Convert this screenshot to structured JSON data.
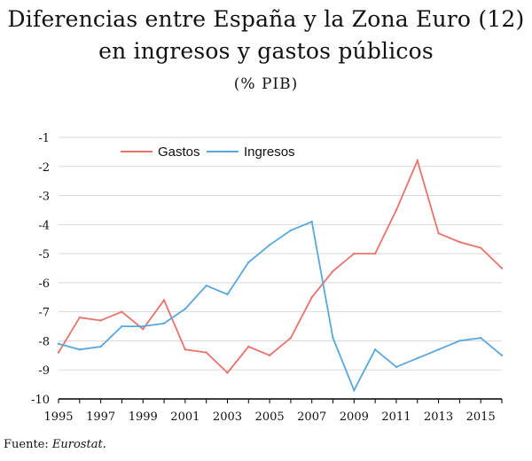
{
  "title_lines": [
    "Diferencias entre España y la Zona Euro (12)",
    "en ingresos y gastos públicos"
  ],
  "subtitle": "(% PIB)",
  "source": {
    "label": "Fuente:",
    "value": "Eurostat."
  },
  "colors": {
    "gastos": "#e8736b",
    "ingresos": "#5aa7dd",
    "grid": "#d9d9d9",
    "axis": "#000000"
  },
  "chart_data": {
    "type": "line",
    "x": [
      1995,
      1996,
      1997,
      1998,
      1999,
      2000,
      2001,
      2002,
      2003,
      2004,
      2005,
      2006,
      2007,
      2008,
      2009,
      2010,
      2011,
      2012,
      2013,
      2014,
      2015,
      2016
    ],
    "x_tick_labels": [
      "1995",
      "1997",
      "1999",
      "2001",
      "2003",
      "2005",
      "2007",
      "2009",
      "2011",
      "2013",
      "2015"
    ],
    "y_tick_labels": [
      "-1",
      "-2",
      "-3",
      "-4",
      "-5",
      "-6",
      "-7",
      "-8",
      "-9",
      "-10"
    ],
    "ylim": [
      -10,
      -1
    ],
    "xlim": [
      1995,
      2016
    ],
    "grid": true,
    "legend_position": "top-center",
    "series": [
      {
        "name": "Gastos",
        "values": [
          -8.4,
          -7.2,
          -7.3,
          -7.0,
          -7.6,
          -6.6,
          -8.3,
          -8.4,
          -9.1,
          -8.2,
          -8.5,
          -7.9,
          -6.5,
          -5.6,
          -5.0,
          -5.0,
          -3.5,
          -1.8,
          -4.3,
          -4.6,
          -4.8,
          -5.5
        ]
      },
      {
        "name": "Ingresos",
        "values": [
          -8.1,
          -8.3,
          -8.2,
          -7.5,
          -7.5,
          -7.4,
          -6.9,
          -6.1,
          -6.4,
          -5.3,
          -4.7,
          -4.2,
          -3.9,
          -7.9,
          -9.7,
          -8.3,
          -8.9,
          -8.6,
          -8.3,
          -8.0,
          -7.9,
          -8.5
        ]
      }
    ]
  }
}
